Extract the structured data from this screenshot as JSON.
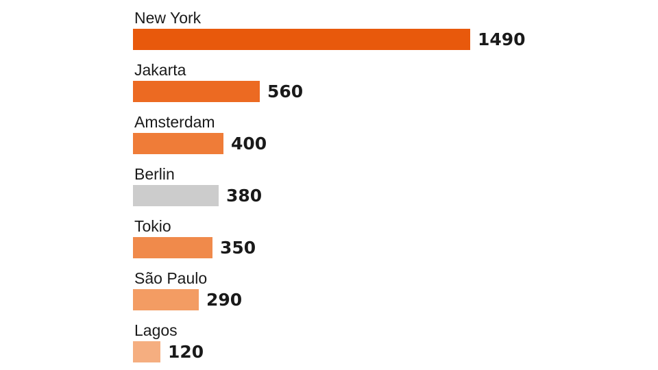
{
  "chart_data": {
    "type": "bar",
    "orientation": "horizontal",
    "categories": [
      "New York",
      "Jakarta",
      "Amsterdam",
      "Berlin",
      "Tokio",
      "São Paulo",
      "Lagos"
    ],
    "values": [
      1490,
      560,
      400,
      380,
      350,
      290,
      120
    ],
    "colors": [
      "#e8590c",
      "#ec6a22",
      "#ef7c38",
      "#cccccc",
      "#f08a4b",
      "#f39c63",
      "#f5ae80"
    ],
    "title": "",
    "xlabel": "",
    "ylabel": "",
    "grid": false,
    "legend": "none"
  }
}
